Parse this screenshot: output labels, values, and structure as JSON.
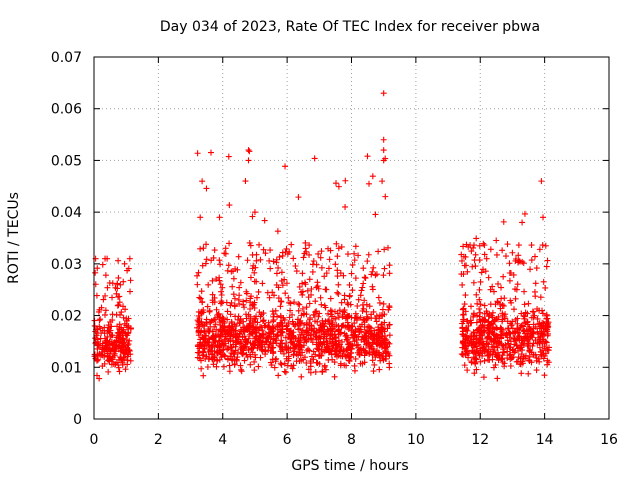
{
  "chart_data": {
    "type": "scatter",
    "title": "Day 034 of 2023, Rate Of TEC Index for receiver pbwa",
    "xlabel": "GPS time / hours",
    "ylabel": "ROTI / TECUs",
    "xlim": [
      0,
      16
    ],
    "ylim": [
      0,
      0.07
    ],
    "xticks": [
      "0",
      "2",
      "4",
      "6",
      "8",
      "10",
      "12",
      "14",
      "16"
    ],
    "yticks": [
      "0",
      "0.01",
      "0.02",
      "0.03",
      "0.04",
      "0.05",
      "0.06",
      "0.07"
    ],
    "grid": true,
    "marker": "plus",
    "color": "#ff0000",
    "series": [
      {
        "name": "ROTI",
        "segments": [
          {
            "x_start": 0.0,
            "x_end": 1.15,
            "typical_range": [
              0.007,
              0.02
            ],
            "max": 0.031
          },
          {
            "x_start": 3.2,
            "x_end": 9.2,
            "typical_range": [
              0.007,
              0.022
            ],
            "max": 0.063
          },
          {
            "x_start": 11.4,
            "x_end": 14.15,
            "typical_range": [
              0.007,
              0.022
            ],
            "max": 0.046
          }
        ],
        "notable_points": [
          {
            "x": 0.05,
            "y": 0.031
          },
          {
            "x": 0.95,
            "y": 0.03
          },
          {
            "x": 3.3,
            "y": 0.039
          },
          {
            "x": 3.9,
            "y": 0.039
          },
          {
            "x": 4.8,
            "y": 0.052
          },
          {
            "x": 4.8,
            "y": 0.05
          },
          {
            "x": 5.0,
            "y": 0.04
          },
          {
            "x": 7.8,
            "y": 0.041
          },
          {
            "x": 9.0,
            "y": 0.063
          },
          {
            "x": 9.0,
            "y": 0.054
          },
          {
            "x": 9.0,
            "y": 0.052
          },
          {
            "x": 9.0,
            "y": 0.05
          },
          {
            "x": 8.95,
            "y": 0.046
          },
          {
            "x": 9.05,
            "y": 0.043
          },
          {
            "x": 12.2,
            "y": 0.031
          },
          {
            "x": 13.3,
            "y": 0.038
          },
          {
            "x": 13.9,
            "y": 0.046
          },
          {
            "x": 13.95,
            "y": 0.039
          }
        ]
      }
    ]
  }
}
